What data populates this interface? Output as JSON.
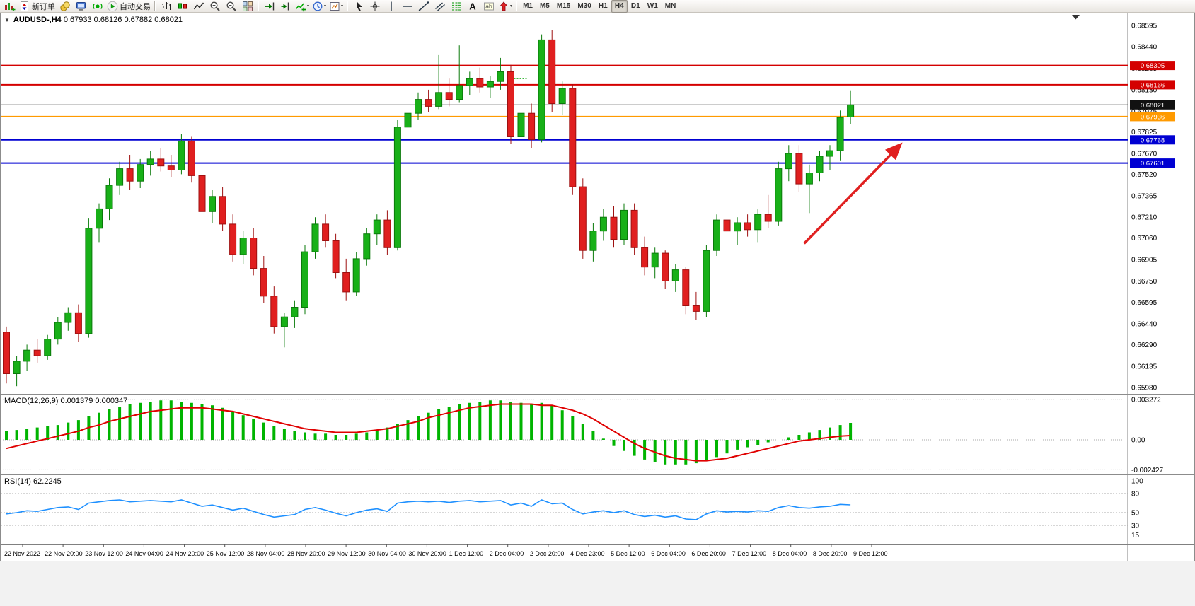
{
  "toolbar": {
    "notification_count": "1",
    "dd_icon": "▾",
    "active_button": "tf-h4-button",
    "buttons": [
      {
        "name": "new-chart-button",
        "icon": "chart-plus"
      },
      {
        "name": "new-order-button",
        "icon": "order",
        "label": "新订单"
      },
      {
        "name": "profile-button",
        "icon": "gold"
      },
      {
        "name": "market-watch-button",
        "icon": "monitor"
      },
      {
        "name": "ea-signals-button",
        "icon": "ea"
      },
      {
        "name": "auto-trading-button",
        "icon": "play",
        "label": "自动交易"
      },
      {
        "sep": true
      },
      {
        "name": "bar-chart-button",
        "icon": "bars"
      },
      {
        "name": "candlestick-chart-button",
        "icon": "candles"
      },
      {
        "name": "line-chart-button",
        "icon": "linechart"
      },
      {
        "name": "zoom-in-button",
        "icon": "zoom-in"
      },
      {
        "name": "zoom-out-button",
        "icon": "zoom-out"
      },
      {
        "name": "tile-windows-button",
        "icon": "tile"
      },
      {
        "sep": true
      },
      {
        "name": "auto-scroll-button",
        "icon": "autoscroll"
      },
      {
        "name": "chart-shift-button",
        "icon": "shift"
      },
      {
        "name": "indicators-button",
        "icon": "ind",
        "dd": true
      },
      {
        "name": "periods-button",
        "icon": "cycles",
        "dd": true
      },
      {
        "name": "templates-button",
        "icon": "template",
        "dd": true
      },
      {
        "sep": true
      },
      {
        "name": "cursor-tool-button",
        "icon": "cursor"
      },
      {
        "name": "crosshair-tool-button",
        "icon": "crosshair"
      },
      {
        "name": "vertical-line-tool-button",
        "icon": "vline"
      },
      {
        "name": "horizontal-line-tool-button",
        "icon": "hline"
      },
      {
        "name": "trendline-tool-button",
        "icon": "tline"
      },
      {
        "name": "channel-tool-button",
        "icon": "channel"
      },
      {
        "name": "fibonacci-tool-button",
        "icon": "fib"
      },
      {
        "name": "text-tool-button",
        "icon": "text-a"
      },
      {
        "name": "label-tool-button",
        "icon": "label-t"
      },
      {
        "name": "arrows-tool-button",
        "icon": "arrows",
        "dd": true
      },
      {
        "sep": true
      },
      {
        "name": "tf-m1-button",
        "label": "M1",
        "tf": true
      },
      {
        "name": "tf-m5-button",
        "label": "M5",
        "tf": true
      },
      {
        "name": "tf-m15-button",
        "label": "M15",
        "tf": true
      },
      {
        "name": "tf-m30-button",
        "label": "M30",
        "tf": true
      },
      {
        "name": "tf-h1-button",
        "label": "H1",
        "tf": true
      },
      {
        "name": "tf-h4-button",
        "label": "H4",
        "tf": true
      },
      {
        "name": "tf-d1-button",
        "label": "D1",
        "tf": true
      },
      {
        "name": "tf-w1-button",
        "label": "W1",
        "tf": true
      },
      {
        "name": "tf-mn-button",
        "label": "MN",
        "tf": true
      }
    ]
  },
  "main_chart": {
    "title": "AUDUSD-,H4",
    "ohlc_text": "0.67933 0.68126 0.67882 0.68021",
    "one_click_icon": "▼"
  },
  "chart_data": [
    {
      "type": "candlestick",
      "title": "AUDUSD-,H4",
      "open": 0.67933,
      "high": 0.68126,
      "low": 0.67882,
      "close": 0.68021,
      "ylim": [
        0.6595,
        0.6864
      ],
      "y_ticks": [
        0.68595,
        0.6844,
        0.68285,
        0.6813,
        0.67975,
        0.67825,
        0.6767,
        0.6752,
        0.67365,
        0.6721,
        0.6706,
        0.66905,
        0.6675,
        0.66595,
        0.6644,
        0.6629,
        0.66135,
        0.6598
      ],
      "x_labels": [
        "22 Nov 2022",
        "22 Nov 20:00",
        "23 Nov 12:00",
        "24 Nov 04:00",
        "24 Nov 20:00",
        "25 Nov 12:00",
        "28 Nov 04:00",
        "28 Nov 20:00",
        "29 Nov 12:00",
        "30 Nov 04:00",
        "30 Nov 20:00",
        "1 Dec 12:00",
        "2 Dec 04:00",
        "2 Dec 20:00",
        "4 Dec 23:00",
        "5 Dec 12:00",
        "6 Dec 04:00",
        "6 Dec 20:00",
        "7 Dec 12:00",
        "8 Dec 04:00",
        "8 Dec 20:00",
        "9 Dec 12:00"
      ],
      "colors": {
        "up": "#18b018",
        "up_dark": "#0a7a0a",
        "down": "#e01f1f",
        "down_dark": "#9e1010"
      },
      "candles": [
        [
          0.6638,
          0.6642,
          0.6601,
          0.6608
        ],
        [
          0.6608,
          0.6621,
          0.6599,
          0.6617
        ],
        [
          0.6617,
          0.6629,
          0.661,
          0.6625
        ],
        [
          0.6625,
          0.6633,
          0.6616,
          0.6621
        ],
        [
          0.6621,
          0.6636,
          0.6618,
          0.6633
        ],
        [
          0.6633,
          0.6649,
          0.6629,
          0.6645
        ],
        [
          0.6645,
          0.6656,
          0.6639,
          0.6652
        ],
        [
          0.6652,
          0.6658,
          0.6631,
          0.6637
        ],
        [
          0.6637,
          0.672,
          0.6634,
          0.6713
        ],
        [
          0.6713,
          0.6731,
          0.6703,
          0.6727
        ],
        [
          0.6727,
          0.6749,
          0.6719,
          0.6744
        ],
        [
          0.6744,
          0.6761,
          0.6737,
          0.6756
        ],
        [
          0.6756,
          0.6766,
          0.6741,
          0.6747
        ],
        [
          0.6747,
          0.6763,
          0.6742,
          0.6759
        ],
        [
          0.6759,
          0.6769,
          0.6751,
          0.6763
        ],
        [
          0.6763,
          0.6771,
          0.6754,
          0.6758
        ],
        [
          0.6758,
          0.6766,
          0.675,
          0.6755
        ],
        [
          0.6755,
          0.6781,
          0.6752,
          0.6776
        ],
        [
          0.6776,
          0.6779,
          0.6746,
          0.6751
        ],
        [
          0.6751,
          0.6757,
          0.6719,
          0.6725
        ],
        [
          0.6725,
          0.6741,
          0.6717,
          0.6736
        ],
        [
          0.6736,
          0.6743,
          0.6711,
          0.6716
        ],
        [
          0.6716,
          0.6723,
          0.6689,
          0.6694
        ],
        [
          0.6694,
          0.6711,
          0.6687,
          0.6706
        ],
        [
          0.6706,
          0.6713,
          0.6679,
          0.6684
        ],
        [
          0.6684,
          0.6693,
          0.6659,
          0.6664
        ],
        [
          0.6664,
          0.6671,
          0.6637,
          0.6642
        ],
        [
          0.6642,
          0.6652,
          0.6627,
          0.6649
        ],
        [
          0.6649,
          0.6661,
          0.6641,
          0.6656
        ],
        [
          0.6656,
          0.6701,
          0.6651,
          0.6696
        ],
        [
          0.6696,
          0.6721,
          0.6691,
          0.6716
        ],
        [
          0.6716,
          0.6723,
          0.6699,
          0.6704
        ],
        [
          0.6704,
          0.6709,
          0.6677,
          0.6681
        ],
        [
          0.6681,
          0.6691,
          0.6661,
          0.6667
        ],
        [
          0.6667,
          0.6696,
          0.6664,
          0.6691
        ],
        [
          0.6691,
          0.6713,
          0.6686,
          0.6709
        ],
        [
          0.6709,
          0.6723,
          0.6701,
          0.6719
        ],
        [
          0.6719,
          0.6726,
          0.6694,
          0.6699
        ],
        [
          0.6699,
          0.6791,
          0.6697,
          0.6786
        ],
        [
          0.6786,
          0.6801,
          0.6779,
          0.6796
        ],
        [
          0.6796,
          0.6811,
          0.6791,
          0.6806
        ],
        [
          0.6806,
          0.6813,
          0.6797,
          0.6801
        ],
        [
          0.6801,
          0.6838,
          0.6799,
          0.6811
        ],
        [
          0.6811,
          0.6821,
          0.6801,
          0.6806
        ],
        [
          0.6806,
          0.6845,
          0.6804,
          0.6816
        ],
        [
          0.6816,
          0.6826,
          0.6809,
          0.6821
        ],
        [
          0.6821,
          0.6829,
          0.6811,
          0.6815
        ],
        [
          0.6815,
          0.6823,
          0.6807,
          0.6819
        ],
        [
          0.6819,
          0.6836,
          0.6813,
          0.6826
        ],
        [
          0.6826,
          0.6831,
          0.6774,
          0.6779
        ],
        [
          0.6779,
          0.6801,
          0.6769,
          0.6796
        ],
        [
          0.6796,
          0.6803,
          0.6771,
          0.6777
        ],
        [
          0.6777,
          0.6853,
          0.6775,
          0.6849
        ],
        [
          0.6849,
          0.6856,
          0.6797,
          0.6803
        ],
        [
          0.6803,
          0.6819,
          0.6795,
          0.6814
        ],
        [
          0.6814,
          0.6817,
          0.6737,
          0.6743
        ],
        [
          0.6743,
          0.6749,
          0.6691,
          0.6697
        ],
        [
          0.6697,
          0.6717,
          0.6689,
          0.6711
        ],
        [
          0.6711,
          0.6727,
          0.6704,
          0.6721
        ],
        [
          0.6721,
          0.6729,
          0.6699,
          0.6705
        ],
        [
          0.6705,
          0.6731,
          0.6701,
          0.6726
        ],
        [
          0.6726,
          0.6731,
          0.6694,
          0.6699
        ],
        [
          0.6699,
          0.6707,
          0.6679,
          0.6685
        ],
        [
          0.6685,
          0.6699,
          0.6677,
          0.6695
        ],
        [
          0.6695,
          0.6697,
          0.6669,
          0.6675
        ],
        [
          0.6675,
          0.6687,
          0.6667,
          0.6683
        ],
        [
          0.6683,
          0.6685,
          0.6651,
          0.6657
        ],
        [
          0.6657,
          0.6667,
          0.6647,
          0.6653
        ],
        [
          0.6653,
          0.6701,
          0.6649,
          0.6697
        ],
        [
          0.6697,
          0.6723,
          0.6693,
          0.6719
        ],
        [
          0.6719,
          0.6725,
          0.6705,
          0.6711
        ],
        [
          0.6711,
          0.6721,
          0.6701,
          0.6717
        ],
        [
          0.6717,
          0.6723,
          0.6707,
          0.6712
        ],
        [
          0.6712,
          0.6727,
          0.6703,
          0.6723
        ],
        [
          0.6723,
          0.6737,
          0.6713,
          0.6718
        ],
        [
          0.6718,
          0.6761,
          0.6715,
          0.6756
        ],
        [
          0.6756,
          0.6773,
          0.6747,
          0.6767
        ],
        [
          0.6767,
          0.6773,
          0.6739,
          0.6745
        ],
        [
          0.6745,
          0.6759,
          0.6724,
          0.6753
        ],
        [
          0.6753,
          0.6769,
          0.6747,
          0.6765
        ],
        [
          0.6765,
          0.6773,
          0.6755,
          0.6769
        ],
        [
          0.6769,
          0.6798,
          0.6762,
          0.6793
        ],
        [
          0.67933,
          0.68126,
          0.67882,
          0.68021
        ]
      ],
      "hlines": [
        {
          "price": 0.68305,
          "label": "0.68305",
          "color": "#d40000",
          "width": 2
        },
        {
          "price": 0.68166,
          "label": "0.68166",
          "color": "#d40000",
          "width": 2
        },
        {
          "price": 0.67936,
          "label": "0.67936",
          "color": "#ff9a00",
          "width": 2
        },
        {
          "price": 0.67768,
          "label": "0.67768",
          "color": "#0000d2",
          "width": 2
        },
        {
          "price": 0.67601,
          "label": "0.67601",
          "color": "#0000d2",
          "width": 2
        }
      ],
      "price_line": {
        "price": 0.68021,
        "label": "0.68021",
        "color": "#333333",
        "badge": "#111111"
      },
      "arrow": {
        "from_bar": 78.5,
        "from_price": 0.6702,
        "to_bar": 87.8,
        "to_price": 0.6773,
        "color": "#e02020"
      },
      "marker": {
        "bar": 51,
        "price": 0.6821,
        "color": "#00a000"
      }
    },
    {
      "type": "bar",
      "name": "MACD",
      "title": "MACD(12,26,9)",
      "values_label": "0.001379 0.000347",
      "colors": {
        "histogram": "#00b400",
        "signal": "#e00000"
      },
      "y_tick_values": [
        0.003272,
        0,
        -0.002427
      ],
      "y_tick_labels": [
        "0.003272",
        "0.00",
        "-0.002427"
      ],
      "ylim": [
        -0.00285,
        0.00375
      ],
      "histogram": [
        0.0007,
        0.0008,
        0.0009,
        0.001,
        0.0011,
        0.0012,
        0.0014,
        0.0016,
        0.0019,
        0.0022,
        0.0025,
        0.0027,
        0.0029,
        0.003,
        0.0031,
        0.0032,
        0.0032,
        0.0031,
        0.003,
        0.0029,
        0.0028,
        0.0026,
        0.0023,
        0.002,
        0.0017,
        0.0014,
        0.0011,
        0.0009,
        0.0007,
        0.0006,
        0.0005,
        0.0005,
        0.0004,
        0.0004,
        0.0005,
        0.0006,
        0.0008,
        0.001,
        0.0013,
        0.0016,
        0.0019,
        0.0022,
        0.0025,
        0.0027,
        0.0029,
        0.003,
        0.0031,
        0.0032,
        0.0032,
        0.0031,
        0.003,
        0.0029,
        0.003,
        0.0028,
        0.0024,
        0.0019,
        0.0013,
        0.0007,
        0.0001,
        -0.0005,
        -0.0009,
        -0.0013,
        -0.0016,
        -0.0018,
        -0.002,
        -0.002,
        -0.002,
        -0.0019,
        -0.0017,
        -0.0014,
        -0.0011,
        -0.0008,
        -0.0006,
        -0.0004,
        -0.0002,
        0.0,
        0.0002,
        0.0004,
        0.0006,
        0.0008,
        0.001,
        0.0012,
        0.001379
      ],
      "signal": [
        -0.0007,
        -0.0005,
        -0.0003,
        -0.0001,
        0.0001,
        0.0003,
        0.0005,
        0.0007,
        0.001,
        0.0012,
        0.0015,
        0.0017,
        0.0019,
        0.0021,
        0.0023,
        0.0024,
        0.0025,
        0.0026,
        0.0026,
        0.0026,
        0.0025,
        0.0024,
        0.0023,
        0.0021,
        0.0019,
        0.0017,
        0.0015,
        0.0013,
        0.0011,
        0.0009,
        0.0008,
        0.0007,
        0.0006,
        0.0006,
        0.0006,
        0.0007,
        0.0008,
        0.0009,
        0.0011,
        0.0013,
        0.0015,
        0.0018,
        0.002,
        0.0022,
        0.0024,
        0.0026,
        0.0027,
        0.0028,
        0.0029,
        0.0029,
        0.0029,
        0.0029,
        0.0028,
        0.0028,
        0.0026,
        0.0024,
        0.0021,
        0.0017,
        0.0012,
        0.0007,
        0.0002,
        -0.0003,
        -0.0007,
        -0.001,
        -0.0013,
        -0.0015,
        -0.0016,
        -0.0017,
        -0.0017,
        -0.0016,
        -0.0015,
        -0.0013,
        -0.0011,
        -0.0009,
        -0.0007,
        -0.0005,
        -0.0003,
        -0.0001,
        0.0,
        0.0001,
        0.0002,
        0.0003,
        0.000347
      ]
    },
    {
      "type": "line",
      "name": "RSI",
      "title": "RSI(14)",
      "value_label": "62.2245",
      "color": "#1e90ff",
      "levels": [
        80,
        50,
        30
      ],
      "y_tick_values": [
        100,
        80,
        50,
        30,
        15
      ],
      "y_tick_labels": [
        "100",
        "80",
        "50",
        "30",
        "15"
      ],
      "ylim": [
        0,
        100
      ],
      "values": [
        48,
        50,
        53,
        52,
        55,
        58,
        59,
        55,
        65,
        67,
        69,
        70,
        67,
        68,
        69,
        68,
        67,
        70,
        65,
        60,
        62,
        58,
        54,
        57,
        52,
        47,
        43,
        45,
        47,
        55,
        58,
        54,
        49,
        45,
        50,
        54,
        56,
        52,
        65,
        67,
        68,
        67,
        68,
        66,
        68,
        69,
        67,
        68,
        69,
        62,
        65,
        60,
        70,
        64,
        65,
        55,
        48,
        51,
        53,
        50,
        53,
        47,
        44,
        46,
        43,
        45,
        40,
        39,
        48,
        53,
        51,
        52,
        51,
        53,
        52,
        58,
        61,
        58,
        57,
        59,
        60,
        63,
        62.22
      ]
    }
  ]
}
